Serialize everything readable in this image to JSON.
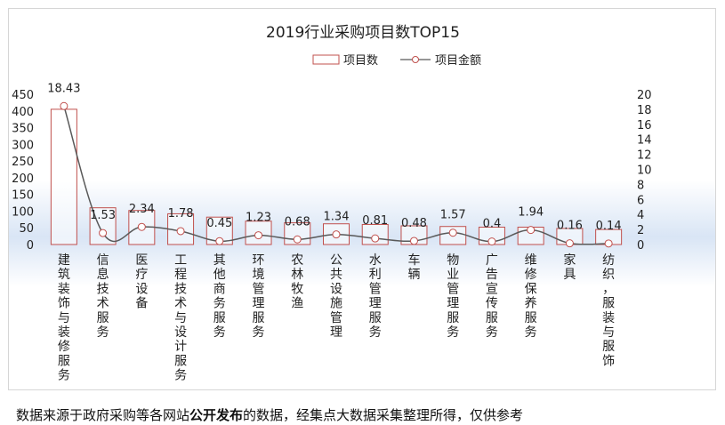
{
  "chart_data": {
    "type": "bar+line",
    "title": "2019行业采购项目数TOP15",
    "legend": {
      "position": "top",
      "bar_label": "项目数",
      "line_label": "项目金额"
    },
    "categories": [
      "建筑装饰与装修服务",
      "信息技术服务",
      "医疗设备",
      "工程技术与设计服务",
      "其他商务服务",
      "环境管理服务",
      "农林牧渔",
      "公共设施管理",
      "水利管理服务",
      "车辆",
      "物业管理服务",
      "广告宣传服务",
      "维修保养服务",
      "家具",
      "纺织，服装与服饰"
    ],
    "series": [
      {
        "name": "项目数",
        "type": "bar",
        "axis": "left",
        "values": [
          405,
          110,
          102,
          92,
          82,
          70,
          65,
          62,
          60,
          56,
          54,
          52,
          52,
          48,
          45
        ]
      },
      {
        "name": "项目金额",
        "type": "line",
        "axis": "right",
        "values": [
          18.43,
          1.53,
          2.34,
          1.78,
          0.45,
          1.23,
          0.68,
          1.34,
          0.81,
          0.48,
          1.57,
          0.4,
          1.94,
          0.16,
          0.14
        ],
        "labels": [
          "18.43",
          "1.53",
          "2.34",
          "1.78",
          "0.45",
          "1.23",
          "0.68",
          "1.34",
          "0.81",
          "0.48",
          "1.57",
          "0.4",
          "1.94",
          "0.16",
          "0.14"
        ]
      }
    ],
    "y_left": {
      "min": 0,
      "max": 450,
      "ticks": [
        "0",
        "50",
        "100",
        "150",
        "200",
        "250",
        "300",
        "350",
        "400",
        "450"
      ]
    },
    "y_right": {
      "min": 0,
      "max": 20,
      "ticks": [
        "0",
        "2",
        "4",
        "6",
        "8",
        "10",
        "12",
        "14",
        "16",
        "18",
        "20"
      ]
    },
    "grid": false,
    "colors": {
      "bar_border": "#c0504d",
      "bar_fill": "#ffffff",
      "line": "#595959",
      "marker_border": "#c0504d",
      "marker_fill": "#ffffff",
      "text": "#222222"
    }
  },
  "footnote": {
    "prefix": "数据来源于政府采购等各网站",
    "bold": "公开发布",
    "suffix": "的数据，经集点大数据采集整理所得，仅供参考"
  }
}
